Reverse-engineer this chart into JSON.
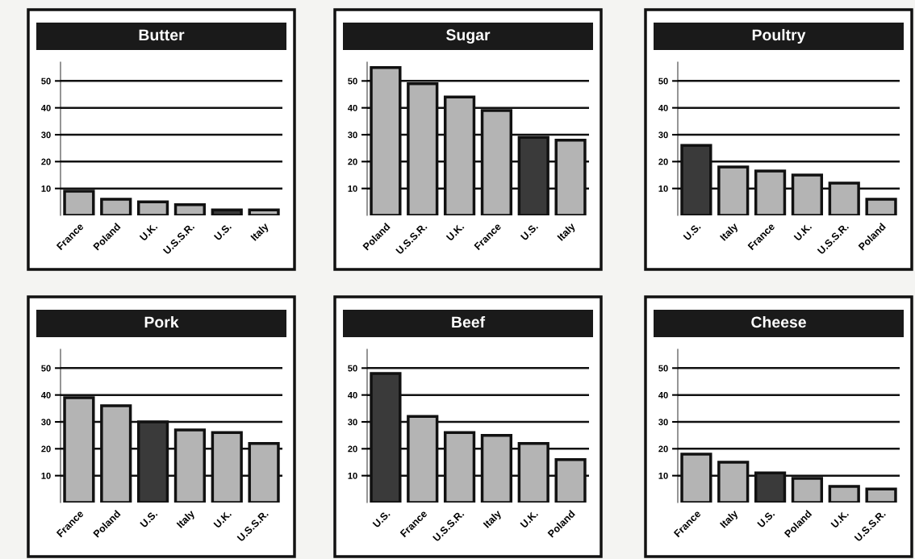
{
  "chart_data": [
    {
      "type": "bar",
      "title": "Butter",
      "categories": [
        "France",
        "Poland",
        "U.K.",
        "U.S.S.R.",
        "U.S.",
        "Italy"
      ],
      "values": [
        9,
        6,
        5,
        4,
        2,
        2
      ],
      "colors": [
        "#b4b4b4",
        "#b4b4b4",
        "#b4b4b4",
        "#b4b4b4",
        "#3a3a3a",
        "#b4b4b4"
      ],
      "ylim": [
        0,
        57
      ],
      "yticks": [
        10,
        20,
        30,
        40,
        50
      ],
      "grid": "y"
    },
    {
      "type": "bar",
      "title": "Sugar",
      "categories": [
        "Poland",
        "U.S.S.R.",
        "U.K.",
        "France",
        "U.S.",
        "Italy"
      ],
      "values": [
        55,
        49,
        44,
        39,
        29,
        28
      ],
      "colors": [
        "#b4b4b4",
        "#b4b4b4",
        "#b4b4b4",
        "#b4b4b4",
        "#3a3a3a",
        "#b4b4b4"
      ],
      "ylim": [
        0,
        57
      ],
      "yticks": [
        10,
        20,
        30,
        40,
        50
      ],
      "grid": "y"
    },
    {
      "type": "bar",
      "title": "Poultry",
      "categories": [
        "U.S.",
        "Italy",
        "France",
        "U.K.",
        "U.S.S.R.",
        "Poland"
      ],
      "values": [
        26,
        18,
        16.5,
        15,
        12,
        6
      ],
      "colors": [
        "#3a3a3a",
        "#b4b4b4",
        "#b4b4b4",
        "#b4b4b4",
        "#b4b4b4",
        "#b4b4b4"
      ],
      "ylim": [
        0,
        57
      ],
      "yticks": [
        10,
        20,
        30,
        40,
        50
      ],
      "grid": "y"
    },
    {
      "type": "bar",
      "title": "Pork",
      "categories": [
        "France",
        "Poland",
        "U.S.",
        "Italy",
        "U.K.",
        "U.S.S.R."
      ],
      "values": [
        39,
        36,
        30,
        27,
        26,
        22
      ],
      "colors": [
        "#b4b4b4",
        "#b4b4b4",
        "#3a3a3a",
        "#b4b4b4",
        "#b4b4b4",
        "#b4b4b4"
      ],
      "ylim": [
        0,
        57
      ],
      "yticks": [
        10,
        20,
        30,
        40,
        50
      ],
      "grid": "y"
    },
    {
      "type": "bar",
      "title": "Beef",
      "categories": [
        "U.S.",
        "France",
        "U.S.S.R.",
        "Italy",
        "U.K.",
        "Poland"
      ],
      "values": [
        48,
        32,
        26,
        25,
        22,
        16
      ],
      "colors": [
        "#3a3a3a",
        "#b4b4b4",
        "#b4b4b4",
        "#b4b4b4",
        "#b4b4b4",
        "#b4b4b4"
      ],
      "ylim": [
        0,
        57
      ],
      "yticks": [
        10,
        20,
        30,
        40,
        50
      ],
      "grid": "y"
    },
    {
      "type": "bar",
      "title": "Cheese",
      "categories": [
        "France",
        "Italy",
        "U.S.",
        "Poland",
        "U.K.",
        "U.S.S.R."
      ],
      "values": [
        18,
        15,
        11,
        9,
        6,
        5
      ],
      "colors": [
        "#b4b4b4",
        "#b4b4b4",
        "#3a3a3a",
        "#b4b4b4",
        "#b4b4b4",
        "#b4b4b4"
      ],
      "ylim": [
        0,
        57
      ],
      "yticks": [
        10,
        20,
        30,
        40,
        50
      ],
      "grid": "y"
    }
  ]
}
